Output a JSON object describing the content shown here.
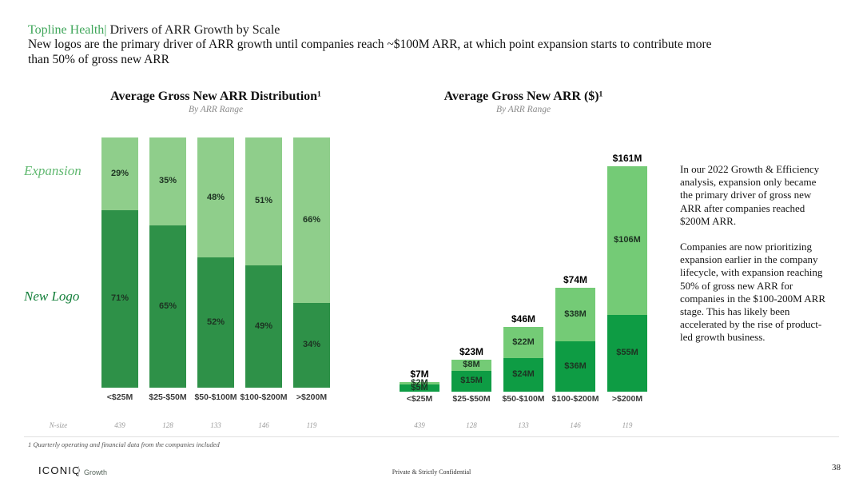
{
  "slide_header": {
    "eyebrow": "Topline Health|",
    "title": " Drivers of ARR Growth by Scale",
    "subtitle_line1": "New logos are the primary driver of ARR growth until companies reach ~$100M ARR, at which point expansion starts to contribute more",
    "subtitle_line2": "than 50% of gross new ARR"
  },
  "colors": {
    "accent_green": "#3FA65A",
    "expansion_fill_left": "#8FCE8B",
    "new_logo_fill_left": "#2E9148",
    "expansion_fill_right": "#74CB76",
    "new_logo_fill_right": "#0E9C44",
    "expansion_label_green": "#5FB86F",
    "new_logo_label_green": "#15803B"
  },
  "chart_data": [
    {
      "type": "bar",
      "stacked": true,
      "title": "Average Gross New ARR Distribution¹",
      "subtitle": "By ARR Range",
      "categories": [
        "<$25M",
        "$25-$50M",
        "$50-$100M",
        "$100-$200M",
        ">$200M"
      ],
      "series": [
        {
          "name": "New Logo",
          "values": [
            71,
            65,
            52,
            49,
            34
          ]
        },
        {
          "name": "Expansion",
          "values": [
            29,
            35,
            48,
            51,
            66
          ]
        }
      ],
      "value_unit": "%",
      "ylim": [
        0,
        100
      ],
      "legend_position": "left",
      "grid": false
    },
    {
      "type": "bar",
      "stacked": true,
      "title": "Average Gross New ARR ($)¹",
      "subtitle": "By ARR Range",
      "categories": [
        "<$25M",
        "$25-$50M",
        "$50-$100M",
        "$100-$200M",
        ">$200M"
      ],
      "series": [
        {
          "name": "New Logo",
          "values": [
            5,
            15,
            24,
            36,
            55
          ]
        },
        {
          "name": "Expansion",
          "values": [
            2,
            8,
            22,
            38,
            106
          ]
        }
      ],
      "totals": [
        7,
        23,
        46,
        74,
        161
      ],
      "total_labels": [
        "$7M",
        "$23M",
        "$46M",
        "$74M",
        "$161M"
      ],
      "value_unit": "$M",
      "ylim": [
        0,
        170
      ],
      "grid": false
    }
  ],
  "commentary": {
    "p1": "In our 2022 Growth & Efficiency analysis, expansion only became the primary driver of gross new ARR after companies reached $200M ARR.",
    "p2": "Companies are now prioritizing expansion earlier in the company lifecycle, with expansion reaching 50% of gross new ARR for companies in the $100-200M ARR stage.  This has likely been accelerated by the rise of product-led growth business."
  },
  "nsize": {
    "label": "N-size",
    "left_values": [
      "439",
      "128",
      "133",
      "146",
      "119"
    ],
    "right_values": [
      "439",
      "128",
      "133",
      "146",
      "119"
    ]
  },
  "footnote": "1 Quarterly operating and financial data from the companies included",
  "footer": {
    "brand": "ICONIQ",
    "brand_sub": "Growth",
    "center_text": "Private & Strictly Confidential",
    "page_number": "38"
  }
}
